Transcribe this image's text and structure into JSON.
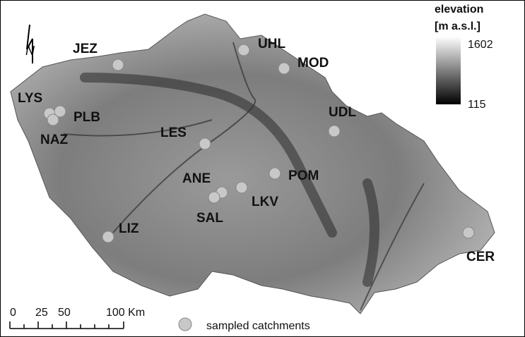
{
  "legend": {
    "title": "elevation",
    "unit": "[m a.s.l.]",
    "max": 1602,
    "min": 115,
    "marker": "sampled catchments"
  },
  "scale": {
    "ticks": [
      0,
      25,
      50,
      "100 Km"
    ]
  },
  "north": "N",
  "sites": [
    "JEZ",
    "UHL",
    "MOD",
    "LYS",
    "PLB",
    "NAZ",
    "LES",
    "UDL",
    "POM",
    "ANE",
    "LKV",
    "SAL",
    "LIZ",
    "CER"
  ]
}
